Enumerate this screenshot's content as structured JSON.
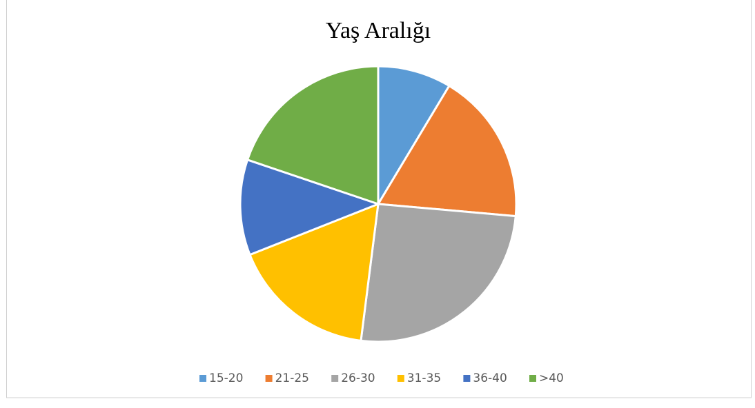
{
  "chart_data": {
    "type": "pie",
    "title": "Yaş Aralığı",
    "categories": [
      "15-20",
      "21-25",
      "26-30",
      "31-35",
      "36-40",
      ">40"
    ],
    "values": [
      8.6,
      17.8,
      25.6,
      17,
      11.2,
      19.8
    ],
    "colors": [
      "#5b9bd5",
      "#ed7d31",
      "#a5a5a5",
      "#ffc000",
      "#4472c4",
      "#70ad47"
    ],
    "legend": "bottom"
  }
}
